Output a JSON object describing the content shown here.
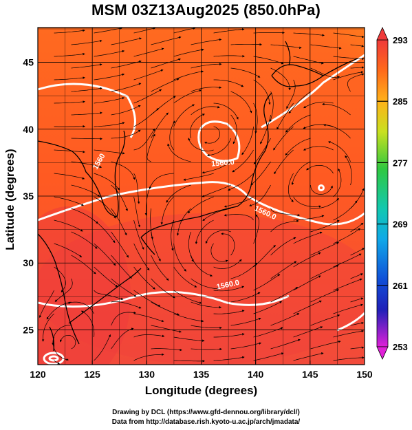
{
  "title": "MSM 03Z13Aug2025 (850.0hPa)",
  "xlabel": "Longitude (degrees)",
  "ylabel": "Latitude  (degrees)",
  "credits": {
    "line1": "Drawing by DCL (https://www.gfd-dennou.org/library/dcl/)",
    "line2": "Data from http://database.rish.kyoto-u.ac.jp/arch/jmadata/"
  },
  "chart_data": {
    "type": "heatmap",
    "xlim": [
      120,
      150
    ],
    "ylim": [
      22.4,
      47.6
    ],
    "xticks": [
      {
        "v": 120,
        "label": "120"
      },
      {
        "v": 125,
        "label": "125"
      },
      {
        "v": 130,
        "label": "130"
      },
      {
        "v": 135,
        "label": "135"
      },
      {
        "v": 140,
        "label": "140"
      },
      {
        "v": 145,
        "label": "145"
      },
      {
        "v": 150,
        "label": "150"
      }
    ],
    "yticks": [
      {
        "v": 25,
        "label": "25"
      },
      {
        "v": 30,
        "label": "30"
      },
      {
        "v": 35,
        "label": "35"
      },
      {
        "v": 40,
        "label": "40"
      },
      {
        "v": 45,
        "label": "45"
      }
    ],
    "grid": true,
    "colorbar": {
      "range": [
        253,
        293
      ],
      "ticks": [
        {
          "v": 293,
          "label": "293"
        },
        {
          "v": 285,
          "label": "285"
        },
        {
          "v": 277,
          "label": "277"
        },
        {
          "v": 269,
          "label": "269"
        },
        {
          "v": 261,
          "label": "261"
        },
        {
          "v": 253,
          "label": "253"
        }
      ]
    },
    "contour_labels": [
      {
        "text": "1560.0",
        "lon": 137.0,
        "lat": 37.3,
        "rot": -5
      },
      {
        "text": "1560.0",
        "lon": 140.8,
        "lat": 33.6,
        "rot": 25
      },
      {
        "text": "1560.0",
        "lon": 137.5,
        "lat": 28.2,
        "rot": -12
      },
      {
        "text": "1560",
        "lon": 125.8,
        "lat": 37.5,
        "rot": -60
      }
    ]
  }
}
